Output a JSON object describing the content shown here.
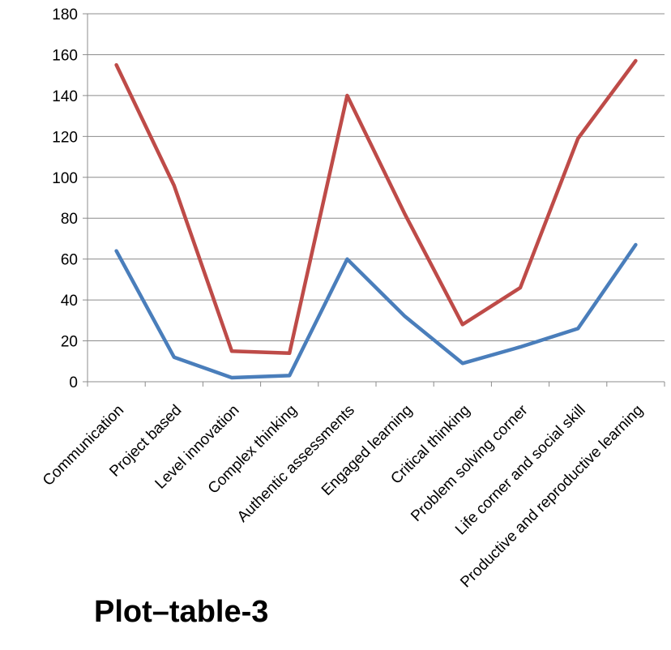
{
  "chart_data": {
    "type": "line",
    "categories": [
      "Communication",
      "Project based",
      "Level innovation",
      "Complex thinking",
      "Authentic assessments",
      "Engaged learning",
      "Critical thinking",
      "Problem solving corner",
      "Life corner and social skill",
      "Productive and reproductive learning"
    ],
    "series": [
      {
        "color": "#4a7ebb",
        "values": [
          64,
          12,
          2,
          3,
          60,
          32,
          9,
          17,
          26,
          67
        ]
      },
      {
        "color": "#be4b48",
        "values": [
          155,
          96,
          15,
          14,
          140,
          82,
          28,
          46,
          119,
          157
        ]
      }
    ],
    "ylim": [
      0,
      180
    ],
    "yticks": [
      0,
      20,
      40,
      60,
      80,
      100,
      120,
      140,
      160,
      180
    ],
    "grid": true,
    "legend": "none"
  },
  "caption": "Plot–table-3"
}
